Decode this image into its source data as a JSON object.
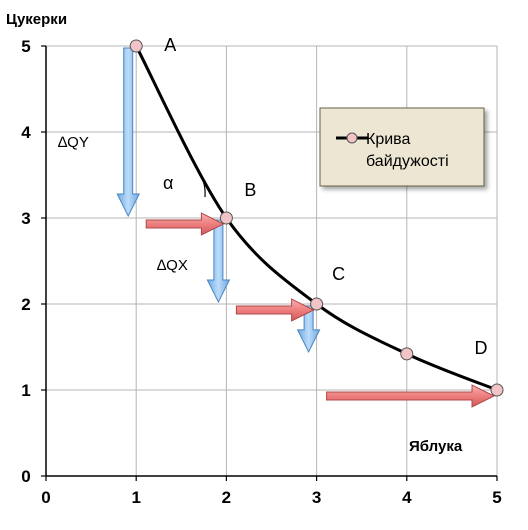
{
  "chart_data": {
    "type": "line",
    "ylabel": "Цукерки",
    "xlabel": "Яблука",
    "xlim": [
      0,
      5
    ],
    "ylim": [
      0,
      5
    ],
    "x_ticks": [
      "0",
      "1",
      "2",
      "3",
      "4",
      "5"
    ],
    "y_ticks": [
      "0",
      "1",
      "2",
      "3",
      "4",
      "5"
    ],
    "grid": true,
    "legend_position": "right",
    "series": [
      {
        "name": "Крива байдужості",
        "x": [
          1,
          2,
          3,
          4,
          5
        ],
        "y": [
          5,
          3,
          2,
          1.42,
          1
        ],
        "color": "#000000"
      }
    ],
    "point_labels": [
      {
        "text": "A",
        "x": 1,
        "y": 5
      },
      {
        "text": "B",
        "x": 2,
        "y": 3
      },
      {
        "text": "C",
        "x": 3,
        "y": 2
      },
      {
        "text": "D",
        "x": 5,
        "y": 1
      }
    ],
    "annotations": {
      "delta_y": "∆QY",
      "delta_x": "∆QX",
      "angle": "α"
    },
    "arrows_down": [
      {
        "x": 1,
        "y_from": 5,
        "y_to": 3
      },
      {
        "x": 2,
        "y_from": 3,
        "y_to": 2
      },
      {
        "x": 3,
        "y_from": 2,
        "y_to": 1.42
      }
    ],
    "arrows_right": [
      {
        "y": 3,
        "x_from": 1,
        "x_to": 2
      },
      {
        "y": 2,
        "x_from": 2,
        "x_to": 3
      },
      {
        "y": 1,
        "x_from": 3,
        "x_to": 5
      }
    ],
    "colors": {
      "curve": "#000000",
      "marker_fill": "#f2c4c8",
      "down_arrow": "#9cc6ee",
      "right_arrow": "#ee8080",
      "legend_bg": "#ece6d2"
    }
  }
}
